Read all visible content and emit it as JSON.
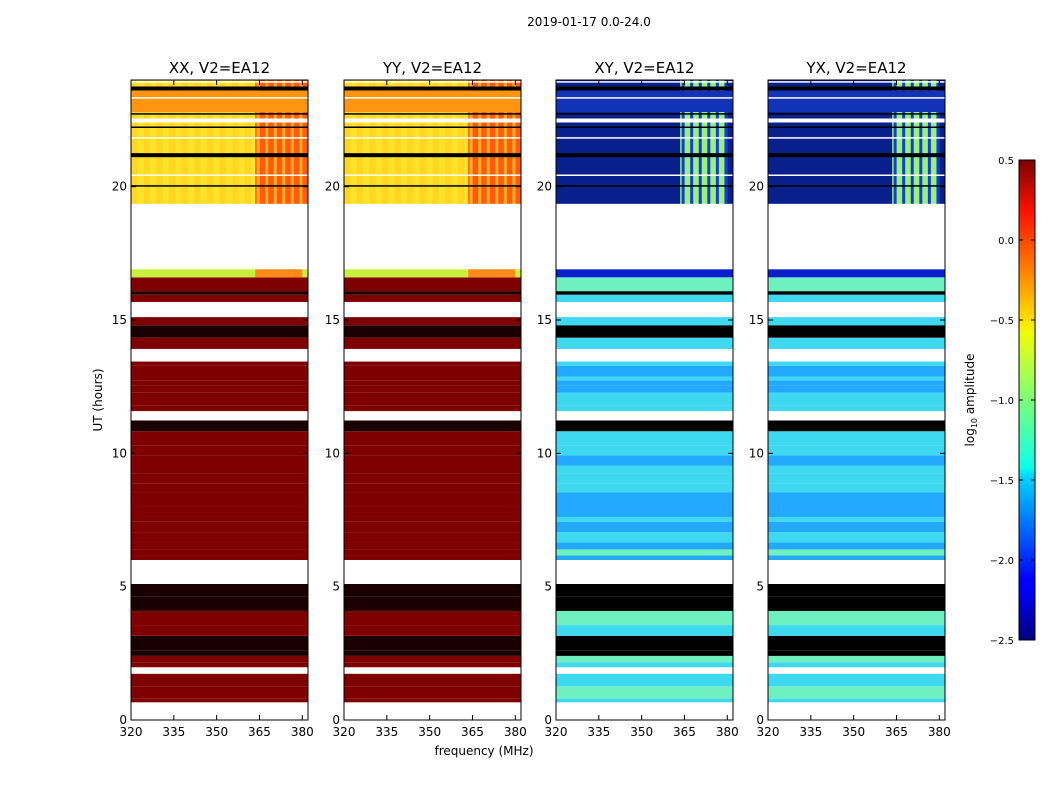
{
  "figure": {
    "suptitle": "2019-01-17 0.0-24.0"
  },
  "chart_data": {
    "type": "heatmap",
    "xlabel": "frequency (MHz)",
    "ylabel": "UT (hours)",
    "xlim": [
      320,
      382
    ],
    "ylim": [
      0,
      24
    ],
    "xticks": [
      320,
      335,
      350,
      365,
      380
    ],
    "yticks": [
      0,
      5,
      10,
      15,
      20
    ],
    "colormap": "jet",
    "colorbar": {
      "label_prefix": "log",
      "label_subscript": "10",
      "label_suffix": " amplitude",
      "range": [
        -2.5,
        0.5
      ],
      "ticks": [
        0.5,
        0.0,
        -0.5,
        -1.0,
        -1.5,
        -2.0,
        -2.5
      ],
      "tick_labels": [
        "0.5",
        "0.0",
        "−0.5",
        "−1.0",
        "−1.5",
        "−2.0",
        "−2.5"
      ]
    },
    "panels": [
      {
        "title": "XX, V2=EA12",
        "kind": "parallel"
      },
      {
        "title": "YY, V2=EA12",
        "kind": "parallel"
      },
      {
        "title": "XY, V2=EA12",
        "kind": "cross"
      },
      {
        "title": "YX, V2=EA12",
        "kind": "cross"
      }
    ],
    "time_segments": [
      {
        "ut_start": 0.5,
        "ut_end": 5.1,
        "level": "saturated_parallel_noisy_cross"
      },
      {
        "ut_start": 5.1,
        "ut_end": 6.0,
        "level": "no_data"
      },
      {
        "ut_start": 6.0,
        "ut_end": 16.6,
        "level": "saturated_parallel_noisy_cross"
      },
      {
        "ut_start": 16.6,
        "ut_end": 16.9,
        "level": "transition"
      },
      {
        "ut_start": 16.9,
        "ut_end": 19.3,
        "level": "no_data"
      },
      {
        "ut_start": 19.3,
        "ut_end": 24.0,
        "level": "band_structure"
      }
    ]
  }
}
